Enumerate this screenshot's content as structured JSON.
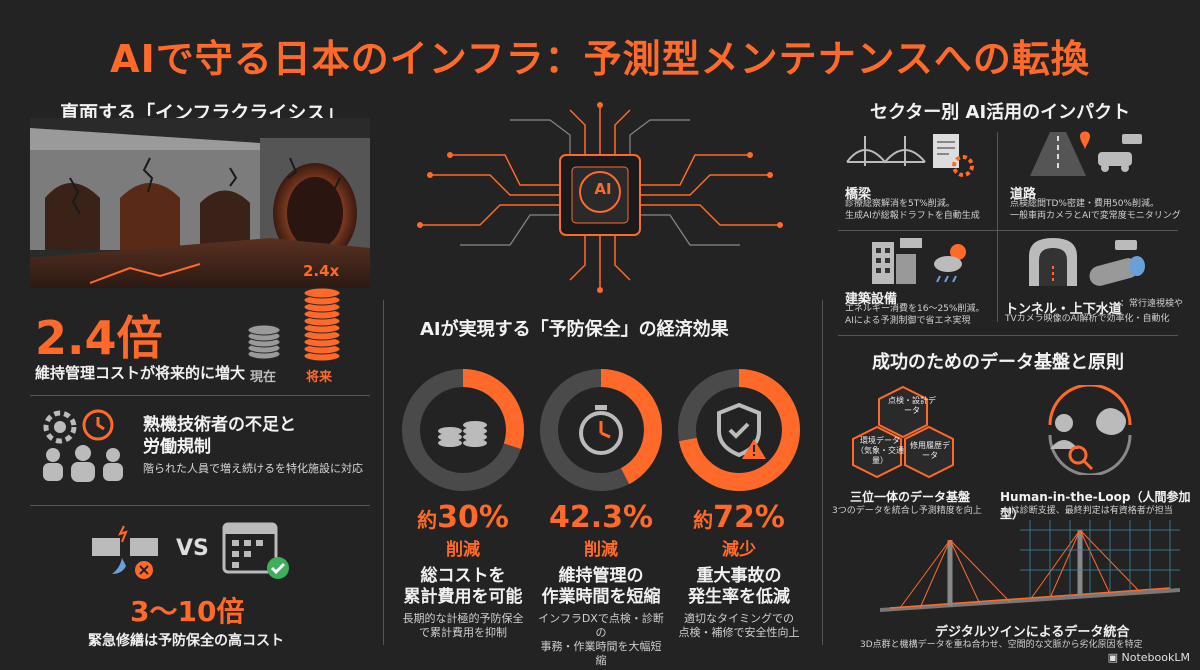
{
  "page_title": "AIで守る日本のインフラ：予測型メンテナンスへの転換",
  "left": {
    "heading": "直面する「インフラクライシス」",
    "crisis": {
      "multiplier_label": "2.4x",
      "big_value": "2.4倍",
      "caption": "維持管理コストが将来的に増大",
      "now_label": "現在",
      "future_label": "将来"
    },
    "workers": {
      "title_line1": "熟機技術者の不足と",
      "title_line2": "労働規制",
      "desc": "階られた人員で増え続けるを特化施設に対応"
    },
    "emergency": {
      "vs_label": "VS",
      "big_value": "3〜10倍",
      "caption": "緊急修繕は予防保全の高コスト"
    }
  },
  "center": {
    "chip_label": "AI",
    "heading": "AIが実現する「予防保全」の経済効果",
    "gauges": [
      {
        "prefix": "約",
        "value": "30%",
        "sub": "削減",
        "title_line1": "総コストを",
        "title_line2": "累計費用を可能",
        "desc_line1": "長期的な計極的予防保全",
        "desc_line2": "で累計費用を抑制",
        "fraction": 0.3
      },
      {
        "prefix": "",
        "value": "42.3%",
        "sub": "削減",
        "title_line1": "維持管理の",
        "title_line2": "作業時間を短縮",
        "desc_line1": "インフラDXで点検・診断の",
        "desc_line2": "事務・作業時間を大幅短縮",
        "fraction": 0.423
      },
      {
        "prefix": "約",
        "value": "72%",
        "sub": "減少",
        "title_line1": "重大事故の",
        "title_line2": "発生率を低減",
        "desc_line1": "適切なタイミングでの",
        "desc_line2": "点検・補修で安全性向上",
        "fraction": 0.72
      }
    ]
  },
  "right": {
    "sector_heading": "セクター別 AI活用のインパクト",
    "sectors": [
      {
        "title": "橋梁",
        "desc_line1": "診療総察解消を5T%削減。",
        "desc_line2": "生成AIが総報ドラフトを自動生成"
      },
      {
        "title": "道路",
        "desc_line1": "点検総間TD%密建・費用50%削減。",
        "desc_line2": "一般車両カメラとAIで変常度モニタリング"
      },
      {
        "title": "建築設備",
        "desc_line1": "エネルギー消費を16〜25%削減。",
        "desc_line2": "AIによる予測制御で省エネ実現"
      },
      {
        "title": "トンネル・上下水道",
        "desc_line1": "：常行遠視検や",
        "desc_line2": "TVカメラ映像のAI解析で効率化・自動化"
      }
    ],
    "principles_heading": "成功のためのデータ基盤と原則",
    "hex_labels": [
      "点検・設計データ",
      "環境データ（気象・交通量）",
      "修用履歴データ"
    ],
    "trinity_title": "三位一体のデータ基盤",
    "trinity_desc": "3つのデータを統合し予測精度を向上",
    "hitl_title": "Human-in-the-Loop（人間参加型）",
    "hitl_desc": "AIは診断支援、最終判定は有資格者が担当",
    "twin_title": "デジタルツインによるデータ統合",
    "twin_desc": "3D点群と機構データを重ね合わせ、空間的な文脈から劣化原因を特定"
  },
  "footer": {
    "brand": "NotebookLM"
  },
  "colors": {
    "accent": "#ff6a2b",
    "background": "#232323",
    "ring_track": "#4a4a4a"
  }
}
